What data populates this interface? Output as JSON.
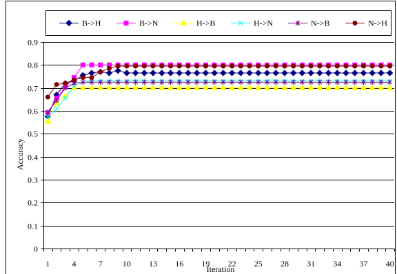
{
  "chart_data": {
    "type": "line",
    "xlabel": "Iteration",
    "ylabel": "Accuracy",
    "x": [
      1,
      2,
      3,
      4,
      5,
      6,
      7,
      8,
      9,
      10,
      11,
      12,
      13,
      14,
      15,
      16,
      17,
      18,
      19,
      20,
      21,
      22,
      23,
      24,
      25,
      26,
      27,
      28,
      29,
      30,
      31,
      32,
      33,
      34,
      35,
      36,
      37,
      38,
      39,
      40
    ],
    "x_tick_labels": [
      "1",
      "4",
      "7",
      "10",
      "13",
      "16",
      "19",
      "22",
      "25",
      "28",
      "31",
      "34",
      "37",
      "40"
    ],
    "y_tick_labels": [
      "0",
      "0.1",
      "0.2",
      "0.3",
      "0.4",
      "0.5",
      "0.6",
      "0.7",
      "0.8",
      "0.9"
    ],
    "ylim": [
      0,
      0.9
    ],
    "grid": {
      "horizontal": true,
      "vertical": false
    },
    "legend": "top",
    "series": [
      {
        "name": "B->H",
        "color": "#000080",
        "marker": "diamond",
        "values": [
          0.575,
          0.67,
          0.72,
          0.73,
          0.755,
          0.765,
          0.77,
          0.765,
          0.775,
          0.765,
          0.765,
          0.765,
          0.765,
          0.765,
          0.765,
          0.765,
          0.765,
          0.765,
          0.765,
          0.765,
          0.765,
          0.765,
          0.765,
          0.765,
          0.765,
          0.765,
          0.765,
          0.765,
          0.765,
          0.765,
          0.765,
          0.765,
          0.765,
          0.765,
          0.765,
          0.765,
          0.765,
          0.765,
          0.765,
          0.765
        ]
      },
      {
        "name": "B->N",
        "color": "#FF00FF",
        "marker": "square",
        "values": [
          0.59,
          0.655,
          0.705,
          0.745,
          0.8,
          0.8,
          0.8,
          0.8,
          0.8,
          0.8,
          0.8,
          0.8,
          0.8,
          0.8,
          0.8,
          0.8,
          0.8,
          0.8,
          0.8,
          0.8,
          0.8,
          0.8,
          0.8,
          0.8,
          0.8,
          0.8,
          0.8,
          0.8,
          0.8,
          0.8,
          0.8,
          0.8,
          0.8,
          0.8,
          0.8,
          0.8,
          0.8,
          0.8,
          0.8,
          0.8
        ]
      },
      {
        "name": "H->B",
        "color": "#FFFF00",
        "marker": "triangle",
        "values": [
          0.555,
          0.635,
          0.665,
          0.7,
          0.7,
          0.7,
          0.7,
          0.7,
          0.7,
          0.7,
          0.7,
          0.7,
          0.7,
          0.7,
          0.7,
          0.7,
          0.7,
          0.7,
          0.7,
          0.7,
          0.7,
          0.7,
          0.7,
          0.7,
          0.7,
          0.7,
          0.7,
          0.7,
          0.7,
          0.7,
          0.7,
          0.7,
          0.7,
          0.7,
          0.7,
          0.7,
          0.7,
          0.7,
          0.7,
          0.7
        ]
      },
      {
        "name": "H->N",
        "color": "#00FFFF",
        "marker": "x",
        "values": [
          0.575,
          0.61,
          0.655,
          0.71,
          0.725,
          0.73,
          0.73,
          0.73,
          0.73,
          0.73,
          0.73,
          0.73,
          0.73,
          0.73,
          0.73,
          0.73,
          0.73,
          0.73,
          0.73,
          0.73,
          0.73,
          0.73,
          0.73,
          0.73,
          0.73,
          0.73,
          0.73,
          0.73,
          0.73,
          0.73,
          0.73,
          0.73,
          0.73,
          0.73,
          0.73,
          0.73,
          0.73,
          0.73,
          0.73,
          0.73
        ]
      },
      {
        "name": "N->B",
        "color": "#800080",
        "marker": "asterisk",
        "values": [
          0.595,
          0.645,
          0.7,
          0.72,
          0.725,
          0.725,
          0.725,
          0.725,
          0.725,
          0.725,
          0.725,
          0.725,
          0.725,
          0.725,
          0.725,
          0.725,
          0.725,
          0.725,
          0.725,
          0.725,
          0.725,
          0.725,
          0.725,
          0.725,
          0.725,
          0.725,
          0.725,
          0.725,
          0.725,
          0.725,
          0.725,
          0.725,
          0.725,
          0.725,
          0.725,
          0.725,
          0.725,
          0.725,
          0.725,
          0.725
        ]
      },
      {
        "name": "N->H",
        "color": "#800000",
        "marker": "circle",
        "values": [
          0.66,
          0.715,
          0.72,
          0.735,
          0.745,
          0.745,
          0.77,
          0.785,
          0.795,
          0.795,
          0.795,
          0.795,
          0.795,
          0.795,
          0.795,
          0.795,
          0.795,
          0.795,
          0.795,
          0.795,
          0.795,
          0.795,
          0.795,
          0.795,
          0.795,
          0.795,
          0.795,
          0.795,
          0.795,
          0.795,
          0.795,
          0.795,
          0.795,
          0.795,
          0.795,
          0.795,
          0.795,
          0.795,
          0.795,
          0.795
        ]
      }
    ]
  }
}
